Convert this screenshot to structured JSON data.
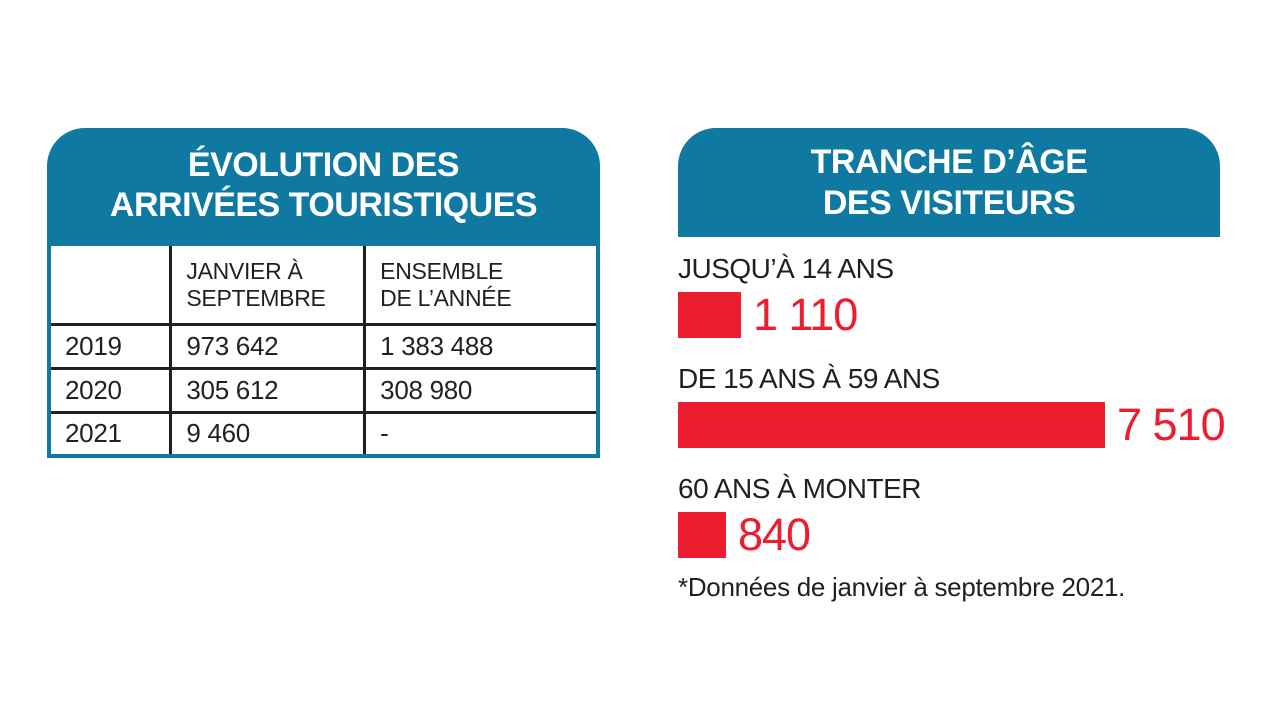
{
  "colors": {
    "teal": "#0F79A1",
    "red": "#ED1C2E",
    "text": "#231F20",
    "background": "#FFFFFF"
  },
  "left_panel": {
    "title_line1": "ÉVOLUTION DES",
    "title_line2": "ARRIVÉES TOURISTIQUES",
    "table": {
      "column_headers": [
        [
          ""
        ],
        [
          "JANVIER À",
          "SEPTEMBRE"
        ],
        [
          "ENSEMBLE",
          "DE L’ANNÉE"
        ]
      ],
      "rows": [
        [
          "2019",
          "973 642",
          "1 383 488"
        ],
        [
          "2020",
          "305 612",
          "308 980"
        ],
        [
          "2021",
          "9 460",
          "-"
        ]
      ]
    }
  },
  "right_panel": {
    "title_line1": "TRANCHE D’ÂGE",
    "title_line2": "DES VISITEURS",
    "bars": [
      {
        "label": "JUSQU’À 14 ANS",
        "value": 1110,
        "display": "1 110"
      },
      {
        "label": "DE 15 ANS À 59 ANS",
        "value": 7510,
        "display": "7 510"
      },
      {
        "label": "60 ANS À MONTER",
        "value": 840,
        "display": "840"
      }
    ],
    "footnote": "*Données de janvier à septembre 2021."
  },
  "chart_data": [
    {
      "type": "table",
      "title": "ÉVOLUTION DES ARRIVÉES TOURISTIQUES",
      "columns": [
        "",
        "JANVIER À SEPTEMBRE",
        "ENSEMBLE DE L’ANNÉE"
      ],
      "rows": [
        [
          "2019",
          "973 642",
          "1 383 488"
        ],
        [
          "2020",
          "305 612",
          "308 980"
        ],
        [
          "2021",
          "9 460",
          "-"
        ]
      ]
    },
    {
      "type": "bar",
      "orientation": "horizontal",
      "title": "TRANCHE D’ÂGE DES VISITEURS",
      "categories": [
        "JUSQU’À 14 ANS",
        "DE 15 ANS À 59 ANS",
        "60 ANS À MONTER"
      ],
      "values": [
        1110,
        7510,
        840
      ],
      "value_labels": [
        "1 110",
        "7 510",
        "840"
      ],
      "bar_color": "#ED1C2E",
      "xlim": [
        0,
        7510
      ],
      "grid": false,
      "legend": false,
      "annotation": "*Données de janvier à septembre 2021."
    }
  ]
}
